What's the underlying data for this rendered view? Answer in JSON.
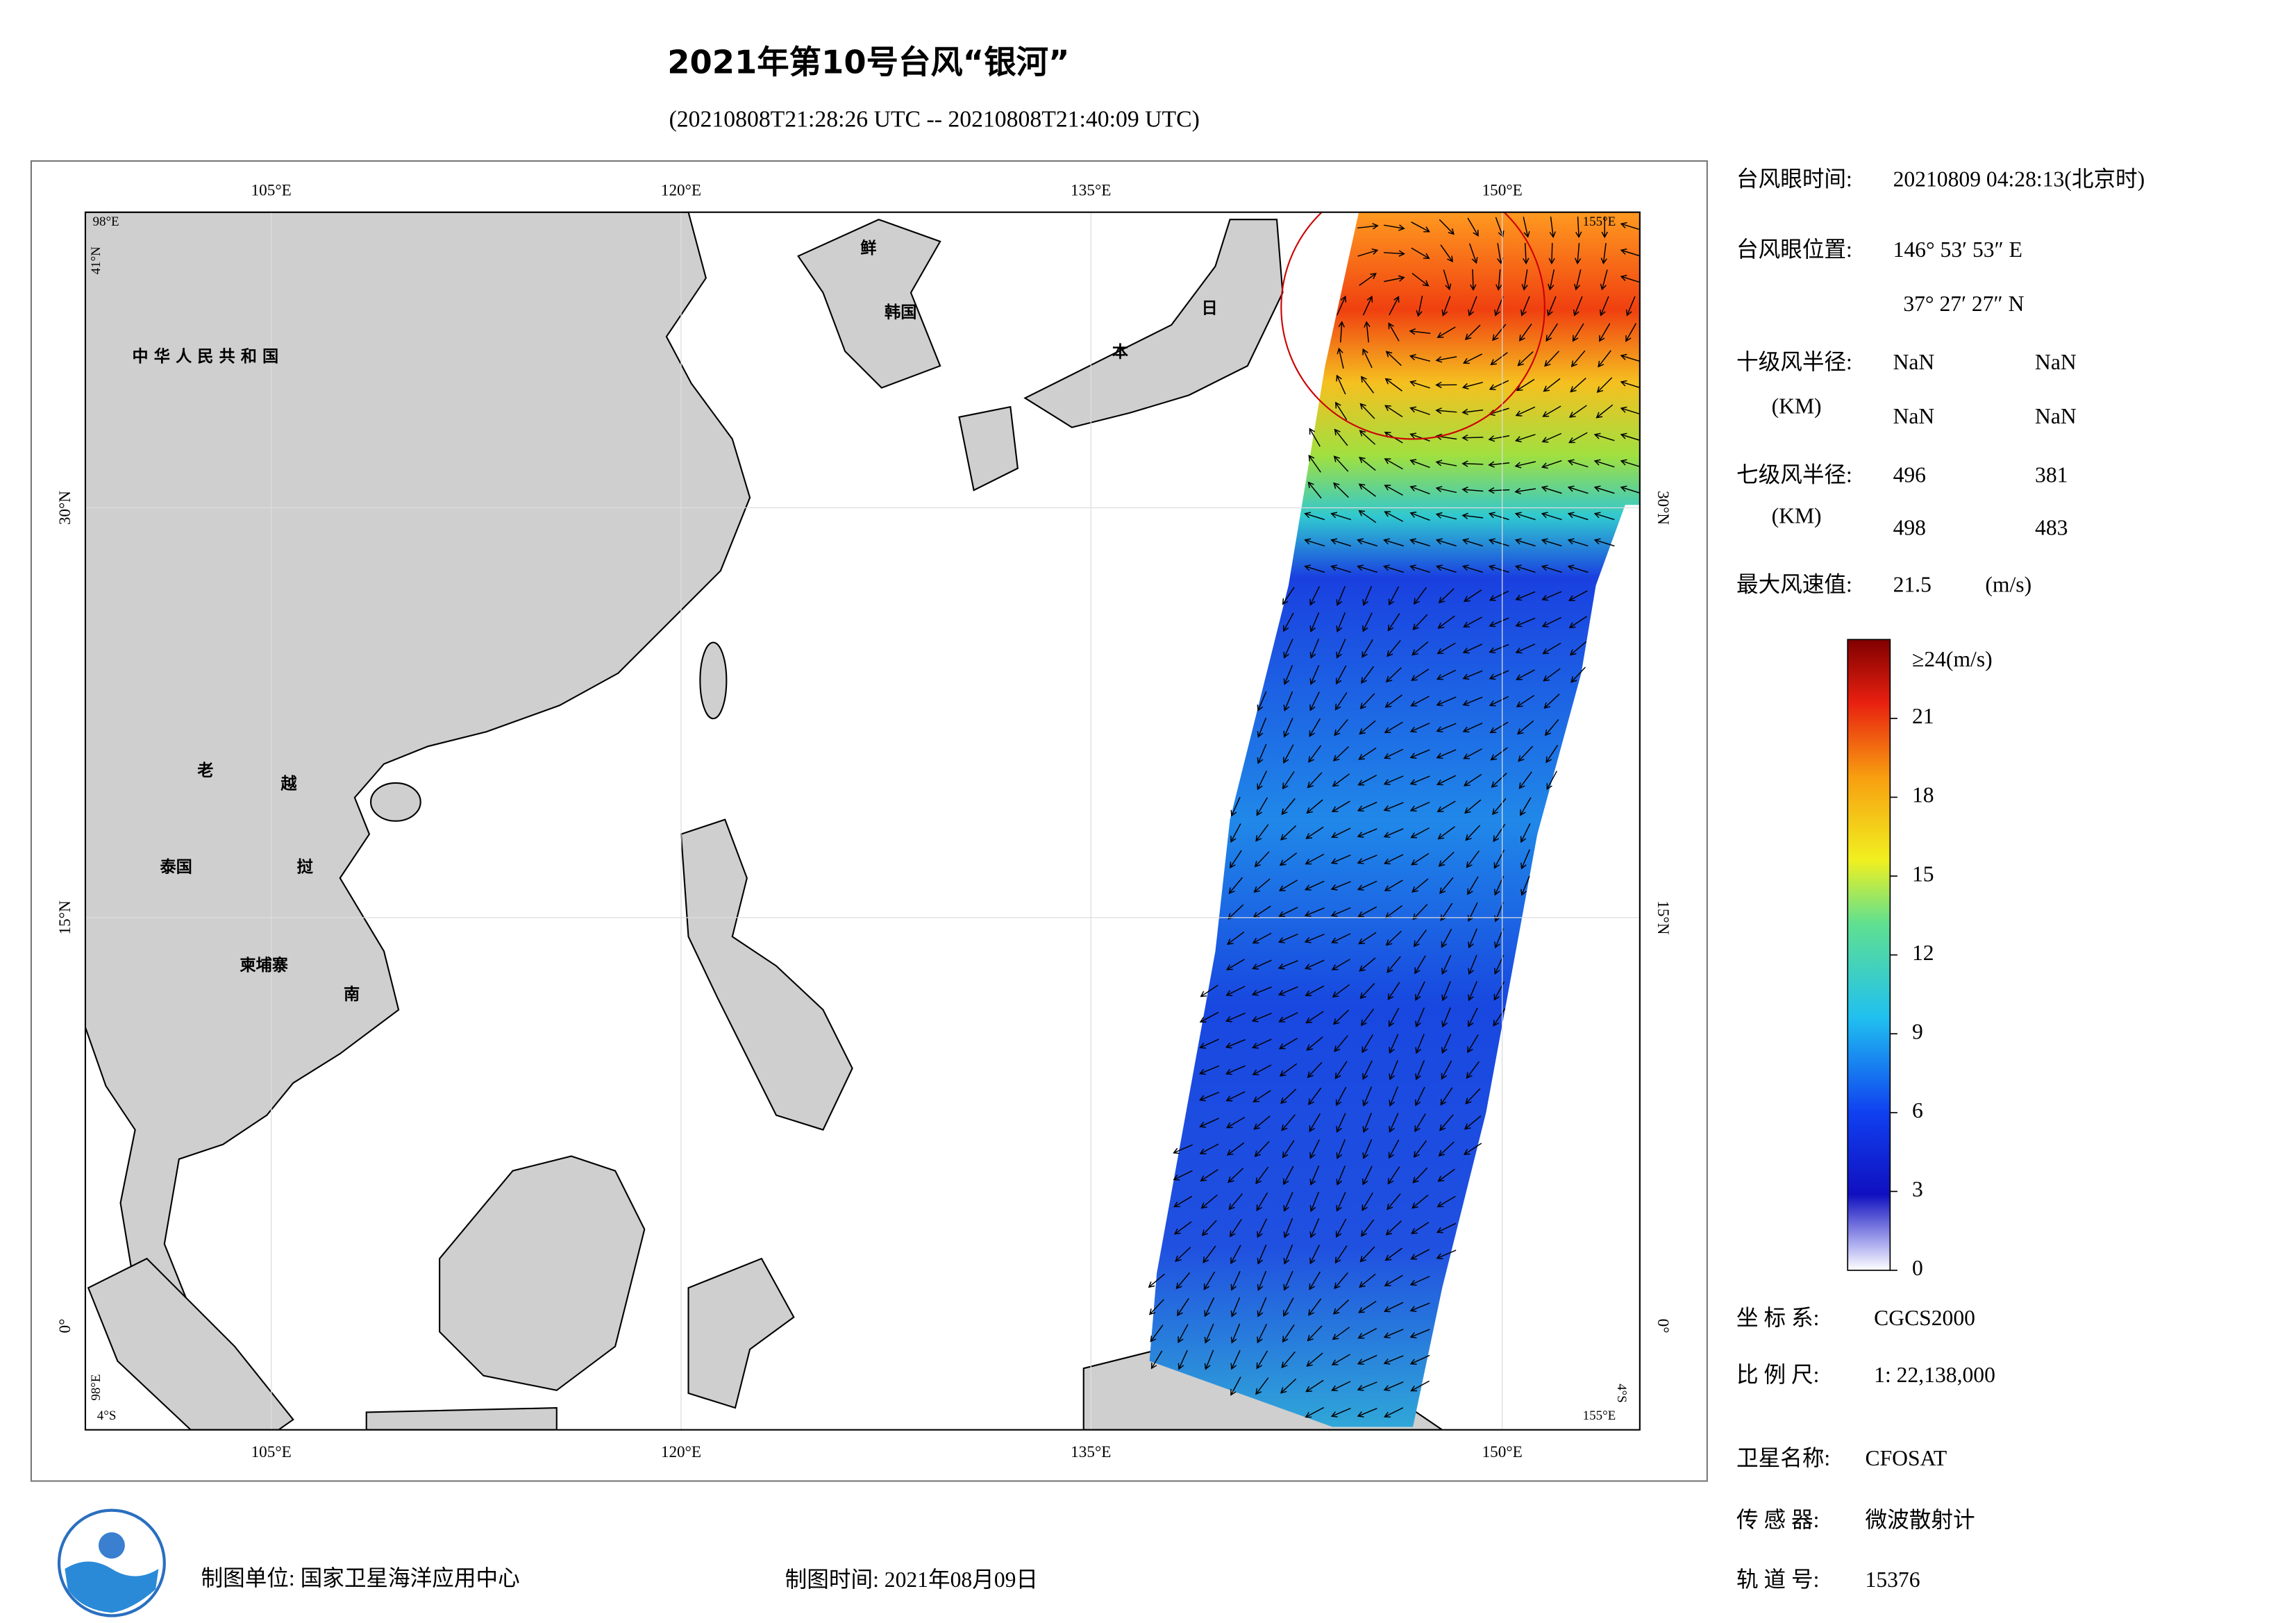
{
  "header": {
    "title": "2021年第10号台风“银河”",
    "subtitle": "(20210808T21:28:26 UTC -- 20210808T21:40:09 UTC)"
  },
  "map": {
    "lon_labels": [
      "105°E",
      "120°E",
      "135°E",
      "150°E"
    ],
    "lat_labels": [
      "30°N",
      "15°N",
      "0°"
    ],
    "corner_labels": [
      "98°E",
      "41°N",
      "155°E",
      "98°E",
      "4°S",
      "155°E",
      "4°S"
    ],
    "place_labels": [
      "中 华 人 民 共 和 国",
      "鲜",
      "韩国",
      "日",
      "本",
      "老",
      "越",
      "泰国",
      "挝",
      "柬埔寨",
      "南"
    ]
  },
  "info": {
    "eye_time": {
      "label": "台风眼时间:",
      "value": "20210809 04:28:13(北京时)"
    },
    "eye_position": {
      "label": "台风眼位置:",
      "lon": "146° 53′ 53″ E",
      "lat": "37° 27′ 27″ N"
    },
    "r10": {
      "label": "十级风半径:",
      "unit": "(KM)",
      "values": [
        "NaN",
        "NaN",
        "NaN",
        "NaN"
      ]
    },
    "r7": {
      "label": "七级风半径:",
      "unit": "(KM)",
      "values": [
        "496",
        "381",
        "498",
        "483"
      ]
    },
    "max_wind": {
      "label": "最大风速值:",
      "value": "21.5",
      "unit": "(m/s)"
    }
  },
  "colorbar": {
    "top_label": "≥24(m/s)",
    "range": [
      0,
      24
    ],
    "ticks": [
      0,
      3,
      6,
      9,
      12,
      15,
      18,
      21
    ]
  },
  "meta": [
    {
      "label": "坐 标 系:",
      "value": "CGCS2000"
    },
    {
      "label": "比 例 尺:",
      "value": "1: 22,138,000"
    },
    {
      "label": "卫星名称:",
      "value": "CFOSAT"
    },
    {
      "label": "传 感 器:",
      "value": "微波散射计"
    },
    {
      "label": "轨 道 号:",
      "value": "15376"
    }
  ],
  "footer": {
    "unit": "制图单位: 国家卫星海洋应用中心",
    "date": "制图时间: 2021年08月09日"
  }
}
